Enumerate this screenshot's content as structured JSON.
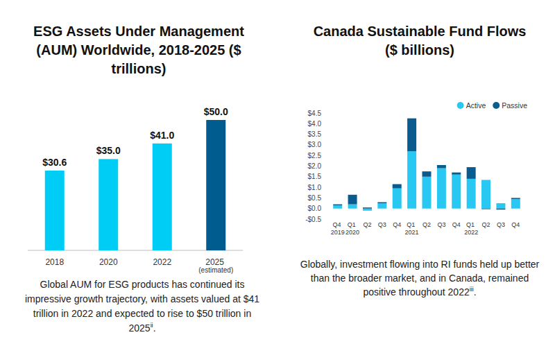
{
  "chart_data": [
    {
      "type": "bar",
      "title": "ESG Assets Under Management (AUM) Worldwide, 2018-2025 ($ trillions)",
      "categories": [
        "2018",
        "2020",
        "2022",
        "2025 (estimated)"
      ],
      "values": [
        30.6,
        35.0,
        41.0,
        50.0
      ],
      "value_labels": [
        "$30.6",
        "$35.0",
        "$41.0",
        "$50.0"
      ],
      "colors": [
        "#00cdf5",
        "#00cdf5",
        "#00cdf5",
        "#005b8f"
      ],
      "ylim": [
        0,
        50
      ],
      "data_labels": true,
      "tick_labels": "x",
      "grid": false,
      "caption": {
        "text": "Global AUM for ESG products has continued its impressive growth trajectory, with assets valued at $41 trillion in 2022 and expected to rise to $50 trillion in 2025",
        "ref": "ii",
        "end": "."
      }
    },
    {
      "type": "bar",
      "stacked": true,
      "title": "Canada Sustainable Fund Flows ($ billions)",
      "categories": [
        "Q4 2019",
        "Q1 2020",
        "Q2",
        "Q3",
        "Q4",
        "Q1 2021",
        "Q2",
        "Q3",
        "Q4",
        "Q1 2022",
        "Q2",
        "Q3",
        "Q4"
      ],
      "series": [
        {
          "name": "Active",
          "color": "#29c8f2",
          "values": [
            0.15,
            0.2,
            -0.1,
            0.25,
            0.95,
            2.7,
            1.5,
            1.9,
            1.6,
            1.4,
            1.35,
            0.25,
            0.45
          ]
        },
        {
          "name": "Passive",
          "color": "#0a5c8e",
          "values": [
            0.05,
            0.45,
            0.05,
            0.05,
            0.2,
            1.55,
            0.25,
            0.15,
            0.1,
            0.55,
            -0.03,
            -0.05,
            0.05
          ]
        }
      ],
      "ylim": [
        -0.5,
        4.5
      ],
      "yticks": [
        {
          "value": -0.5,
          "label": "-$0.5"
        },
        {
          "value": 0,
          "label": "$0.0"
        },
        {
          "value": 0.5,
          "label": "$0.5"
        },
        {
          "value": 1,
          "label": "$1.0"
        },
        {
          "value": 1.5,
          "label": "$1.5"
        },
        {
          "value": 2,
          "label": "$2.0"
        },
        {
          "value": 2.5,
          "label": "$2.5"
        },
        {
          "value": 3,
          "label": "$3.0"
        },
        {
          "value": 3.5,
          "label": "$3.5"
        },
        {
          "value": 4,
          "label": "$4.0"
        },
        {
          "value": 4.5,
          "label": "$4.5"
        }
      ],
      "legend": "top-right",
      "grid": false,
      "caption": {
        "text": "Globally, investment flowing into RI funds held up better than the broader market, and in Canada, remained positive throughout 2022",
        "ref": "iii",
        "end": "."
      }
    }
  ]
}
